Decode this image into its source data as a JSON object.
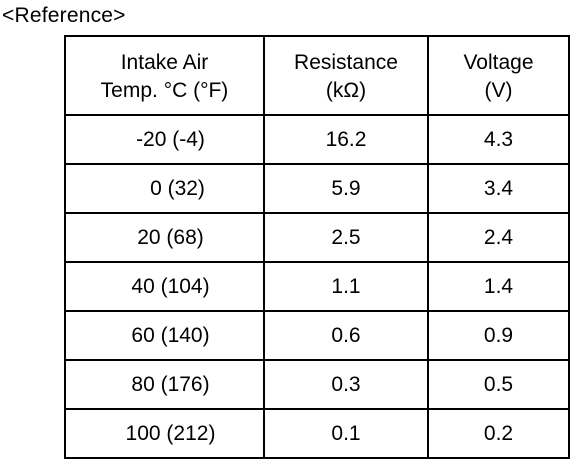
{
  "caption": "<Reference>",
  "table": {
    "headers": [
      {
        "line1": "Intake Air",
        "line2": "Temp. °C (°F)"
      },
      {
        "line1": "Resistance",
        "line2": "(kΩ)"
      },
      {
        "line1": "Voltage",
        "line2": "(V)"
      }
    ],
    "rows": [
      {
        "temp": "-20 (-4)",
        "resistance": "16.2",
        "voltage": "4.3"
      },
      {
        "temp": "0 (32)",
        "resistance": "5.9",
        "voltage": "3.4"
      },
      {
        "temp": "20 (68)",
        "resistance": "2.5",
        "voltage": "2.4"
      },
      {
        "temp": "40 (104)",
        "resistance": "1.1",
        "voltage": "1.4"
      },
      {
        "temp": "60 (140)",
        "resistance": "0.6",
        "voltage": "0.9"
      },
      {
        "temp": "80 (176)",
        "resistance": "0.3",
        "voltage": "0.5"
      },
      {
        "temp": "100 (212)",
        "resistance": "0.1",
        "voltage": "0.2"
      }
    ]
  }
}
